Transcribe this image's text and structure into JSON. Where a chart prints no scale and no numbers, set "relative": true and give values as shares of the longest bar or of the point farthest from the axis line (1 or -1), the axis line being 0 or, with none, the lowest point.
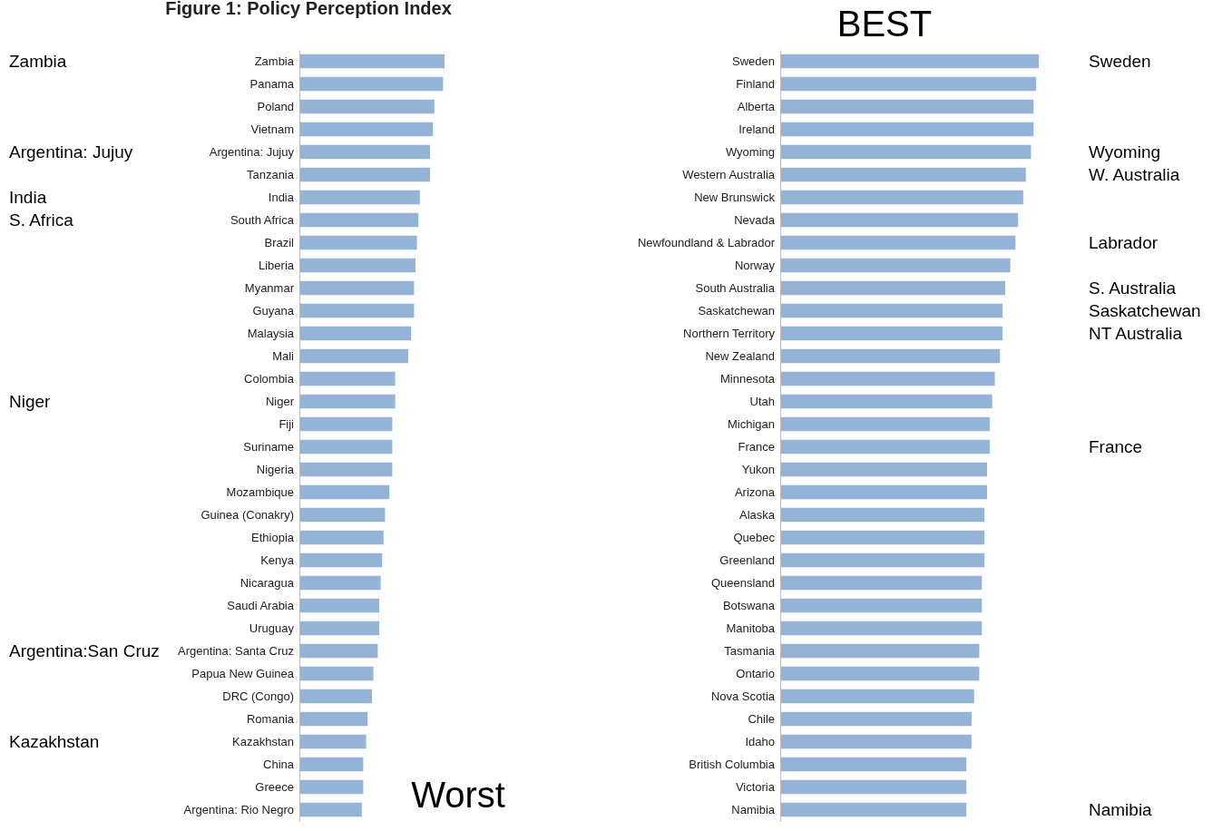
{
  "chart_data": [
    {
      "type": "bar",
      "orientation": "horizontal",
      "relative": true,
      "title": "Figure 1: Policy Perception Index",
      "color": "#95b3d7",
      "categories": [
        "Zambia",
        "Panama",
        "Poland",
        "Vietnam",
        "Argentina: Jujuy",
        "Tanzania",
        "India",
        "South Africa",
        "Brazil",
        "Liberia",
        "Myanmar",
        "Guyana",
        "Malaysia",
        "Mali",
        "Colombia",
        "Niger",
        "Fiji",
        "Suriname",
        "Nigeria",
        "Mozambique",
        "Guinea (Conakry)",
        "Ethiopia",
        "Kenya",
        "Nicaragua",
        "Saudi Arabia",
        "Uruguay",
        "Argentina: Santa Cruz",
        "Papua New Guinea",
        "DRC (Congo)",
        "Romania",
        "Kazakhstan",
        "China",
        "Greece",
        "Argentina: Rio Negro"
      ],
      "values": [
        1,
        0.99,
        0.93,
        0.92,
        0.9,
        0.9,
        0.83,
        0.82,
        0.81,
        0.8,
        0.79,
        0.79,
        0.77,
        0.75,
        0.66,
        0.66,
        0.64,
        0.64,
        0.64,
        0.62,
        0.59,
        0.58,
        0.57,
        0.56,
        0.55,
        0.55,
        0.54,
        0.51,
        0.5,
        0.47,
        0.46,
        0.44,
        0.44,
        0.43
      ],
      "annotations": [
        "Zambia",
        "Argentina: Jujuy",
        "India",
        "S. Africa",
        "Niger",
        "Argentina:San Cruz",
        "Kazakhstan",
        "Worst"
      ]
    },
    {
      "type": "bar",
      "orientation": "horizontal",
      "relative": true,
      "color": "#95b3d7",
      "categories": [
        "Sweden",
        "Finland",
        "Alberta",
        "Ireland",
        "Wyoming",
        "Western Australia",
        "New Brunswick",
        "Nevada",
        "Newfoundland & Labrador",
        "Norway",
        "South Australia",
        "Saskatchewan",
        "Northern Territory",
        "New Zealand",
        "Minnesota",
        "Utah",
        "Michigan",
        "France",
        "Yukon",
        "Arizona",
        "Alaska",
        "Quebec",
        "Greenland",
        "Queensland",
        "Botswana",
        "Manitoba",
        "Tasmania",
        "Ontario",
        "Nova Scotia",
        "Chile",
        "Idaho",
        "British Columbia",
        "Victoria",
        "Namibia"
      ],
      "values": [
        1,
        0.99,
        0.98,
        0.98,
        0.97,
        0.95,
        0.94,
        0.92,
        0.91,
        0.89,
        0.87,
        0.86,
        0.86,
        0.85,
        0.83,
        0.82,
        0.81,
        0.81,
        0.8,
        0.8,
        0.79,
        0.79,
        0.79,
        0.78,
        0.78,
        0.78,
        0.77,
        0.77,
        0.75,
        0.74,
        0.74,
        0.72,
        0.72,
        0.72
      ],
      "annotations": [
        "BEST",
        "Sweden",
        "Wyoming",
        "W. Australia",
        "Labrador",
        "S. Australia",
        "Saskatchewan",
        "NT Australia",
        "France",
        "Namibia"
      ]
    }
  ]
}
